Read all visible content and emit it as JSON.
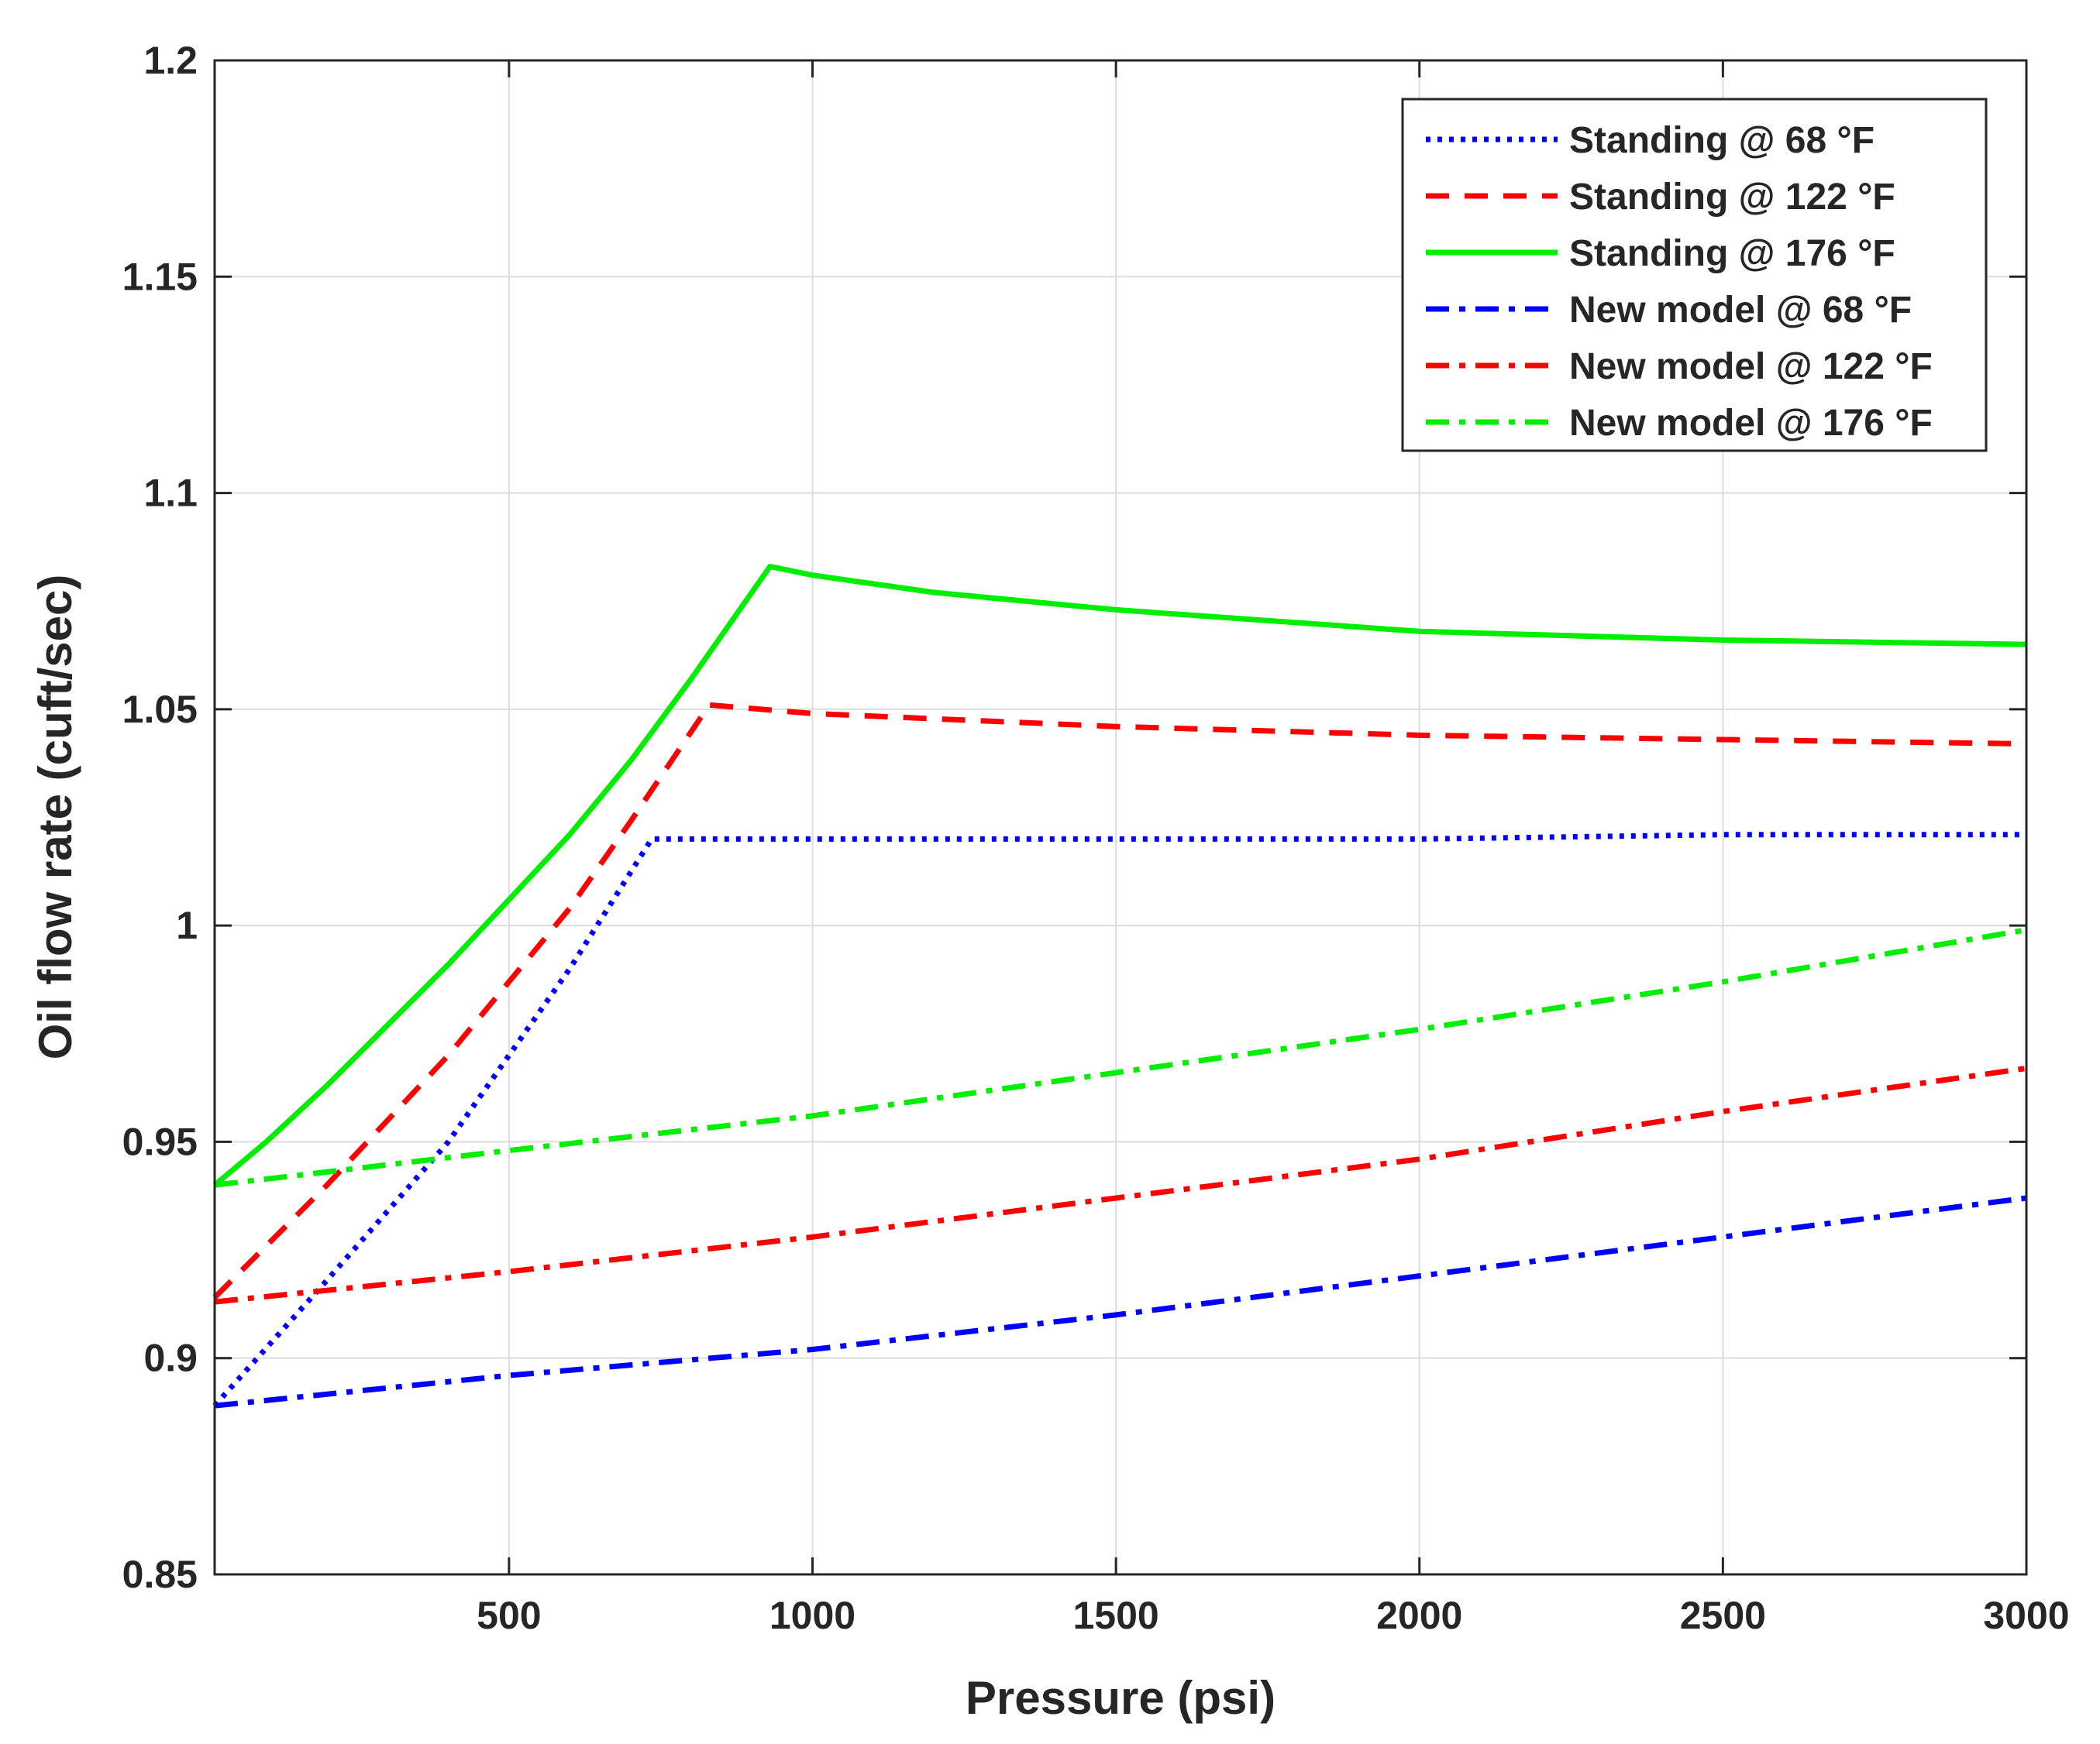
{
  "chart_data": {
    "type": "line",
    "title": "",
    "xlabel": "Pressure (psi)",
    "ylabel": "Oil flow rate (cuft/sec)",
    "xlim": [
      15,
      3000
    ],
    "ylim": [
      0.85,
      1.2
    ],
    "grid": true,
    "legend_position": "top-right",
    "x_ticks": [
      500,
      1000,
      1500,
      2000,
      2500,
      3000
    ],
    "x_tick_labels": [
      "500",
      "1000",
      "1500",
      "2000",
      "2500",
      "3000"
    ],
    "y_ticks": [
      0.85,
      0.9,
      0.95,
      1,
      1.05,
      1.1,
      1.15,
      1.2
    ],
    "y_tick_labels": [
      "0.85",
      "0.9",
      "0.95",
      "1",
      "1.05",
      "1.1",
      "1.15",
      "1.2"
    ],
    "series": [
      {
        "name": "Standing @ 68 °F",
        "color": "#0000ff",
        "style": "dotted",
        "x": [
          15,
          200,
          400,
          600,
          735,
          1000,
          1500,
          2000,
          2500,
          3000
        ],
        "y": [
          0.889,
          0.918,
          0.95,
          0.99,
          1.02,
          1.02,
          1.02,
          1.02,
          1.021,
          1.021
        ]
      },
      {
        "name": "Standing @ 122 °F",
        "color": "#ff0000",
        "style": "dashed",
        "x": [
          15,
          200,
          400,
          600,
          700,
          830,
          1000,
          1500,
          2000,
          2500,
          3000
        ],
        "y": [
          0.914,
          0.94,
          0.97,
          1.004,
          1.024,
          1.051,
          1.049,
          1.046,
          1.044,
          1.043,
          1.042
        ]
      },
      {
        "name": "Standing @ 176 °F",
        "color": "#00ee00",
        "style": "solid",
        "x": [
          15,
          100,
          200,
          300,
          400,
          500,
          600,
          700,
          800,
          930,
          1000,
          1200,
          1500,
          2000,
          2500,
          3000
        ],
        "y": [
          0.94,
          0.95,
          0.963,
          0.977,
          0.991,
          1.006,
          1.021,
          1.038,
          1.057,
          1.083,
          1.081,
          1.077,
          1.073,
          1.068,
          1.066,
          1.065
        ]
      },
      {
        "name": "New model @ 68 °F",
        "color": "#0000ff",
        "style": "dashdot",
        "x": [
          15,
          500,
          1000,
          1500,
          2000,
          2500,
          3000
        ],
        "y": [
          0.889,
          0.896,
          0.902,
          0.91,
          0.919,
          0.928,
          0.937
        ]
      },
      {
        "name": "New model @ 122 °F",
        "color": "#ff0000",
        "style": "dashdot",
        "x": [
          15,
          500,
          1000,
          1500,
          2000,
          2500,
          3000
        ],
        "y": [
          0.913,
          0.92,
          0.928,
          0.937,
          0.946,
          0.957,
          0.967
        ]
      },
      {
        "name": "New model @ 176 °F",
        "color": "#00ee00",
        "style": "dashdot",
        "x": [
          15,
          500,
          1000,
          1500,
          2000,
          2500,
          3000
        ],
        "y": [
          0.94,
          0.948,
          0.956,
          0.966,
          0.976,
          0.987,
          0.999
        ]
      }
    ]
  }
}
